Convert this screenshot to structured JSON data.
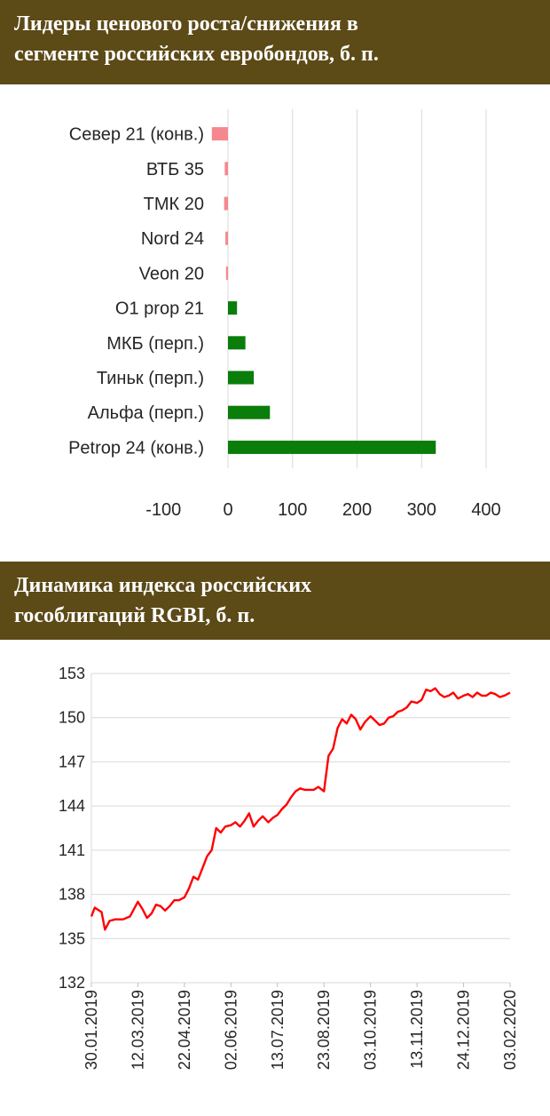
{
  "title1": {
    "line1": "Лидеры ценового роста/снижения в",
    "line2": "сегменте российских евробондов, б. п."
  },
  "title2": {
    "line1": "Динамика индекса российских",
    "line2": "гособлигаций RGBI, б. п."
  },
  "colors": {
    "header_bg": "#5c4a17",
    "negative": "#f4888e",
    "positive": "#0a7d0a",
    "line": "#ff0000",
    "grid": "#d9d9d9"
  },
  "chart_data": [
    {
      "type": "bar",
      "orientation": "horizontal",
      "categories": [
        "Север 21 (конв.)",
        "ВТБ 35",
        "ТМК 20",
        "Nord 24",
        "Veon 20",
        "O1 prop 21",
        "МКБ (перп.)",
        "Тиньк (перп.)",
        "Альфа (перп.)",
        "Petrop 24 (конв.)"
      ],
      "values": [
        -25,
        -5,
        -6,
        -4,
        -3,
        14,
        27,
        40,
        65,
        322
      ],
      "xlim": [
        -100,
        400
      ],
      "xticks": [
        -100,
        0,
        100,
        200,
        300,
        400
      ],
      "grid": true
    },
    {
      "type": "line",
      "ylim": [
        132,
        153
      ],
      "yticks": [
        132,
        135,
        138,
        141,
        144,
        147,
        150,
        153
      ],
      "xlim": [
        "30.01.2019",
        "03.02.2020"
      ],
      "xticks": [
        "30.01.2019",
        "12.03.2019",
        "22.04.2019",
        "02.06.2019",
        "13.07.2019",
        "23.08.2019",
        "03.10.2019",
        "13.11.2019",
        "24.12.2019",
        "03.02.2020"
      ],
      "grid": true,
      "x": [
        "30.01.2019",
        "02.02.2019",
        "08.02.2019",
        "11.02.2019",
        "15.02.2019",
        "20.02.2019",
        "27.02.2019",
        "05.03.2019",
        "12.03.2019",
        "16.03.2019",
        "20.03.2019",
        "24.03.2019",
        "28.03.2019",
        "01.04.2019",
        "05.04.2019",
        "09.04.2019",
        "13.04.2019",
        "17.04.2019",
        "22.04.2019",
        "26.04.2019",
        "30.04.2019",
        "04.05.2019",
        "08.05.2019",
        "12.05.2019",
        "16.05.2019",
        "20.05.2019",
        "24.05.2019",
        "28.05.2019",
        "02.06.2019",
        "06.06.2019",
        "10.06.2019",
        "14.06.2019",
        "18.06.2019",
        "22.06.2019",
        "26.06.2019",
        "30.06.2019",
        "05.07.2019",
        "09.07.2019",
        "13.07.2019",
        "17.07.2019",
        "21.07.2019",
        "25.07.2019",
        "29.07.2019",
        "02.08.2019",
        "06.08.2019",
        "10.08.2019",
        "14.08.2019",
        "18.08.2019",
        "23.08.2019",
        "27.08.2019",
        "31.08.2019",
        "04.09.2019",
        "08.09.2019",
        "12.09.2019",
        "16.09.2019",
        "20.09.2019",
        "24.09.2019",
        "28.09.2019",
        "03.10.2019",
        "07.10.2019",
        "11.10.2019",
        "15.10.2019",
        "19.10.2019",
        "23.10.2019",
        "27.10.2019",
        "31.10.2019",
        "04.11.2019",
        "08.11.2019",
        "13.11.2019",
        "17.11.2019",
        "21.11.2019",
        "25.11.2019",
        "29.11.2019",
        "03.12.2019",
        "07.12.2019",
        "11.12.2019",
        "15.12.2019",
        "19.12.2019",
        "24.12.2019",
        "28.12.2019",
        "01.01.2020",
        "05.01.2020",
        "09.01.2020",
        "13.01.2020",
        "17.01.2020",
        "21.01.2020",
        "25.01.2020",
        "29.01.2020",
        "03.02.2020"
      ],
      "values": [
        136.5,
        137.1,
        136.8,
        135.6,
        136.2,
        136.3,
        136.3,
        136.5,
        137.5,
        137.0,
        136.4,
        136.7,
        137.3,
        137.2,
        136.9,
        137.2,
        137.6,
        137.6,
        137.8,
        138.4,
        139.2,
        139.0,
        139.8,
        140.6,
        141.0,
        142.5,
        142.2,
        142.6,
        142.7,
        142.9,
        142.6,
        143.0,
        143.5,
        142.6,
        143.0,
        143.3,
        142.9,
        143.2,
        143.4,
        143.8,
        144.1,
        144.6,
        145.0,
        145.2,
        145.1,
        145.1,
        145.1,
        145.3,
        145.0,
        147.4,
        147.9,
        149.3,
        149.9,
        149.6,
        150.2,
        149.9,
        149.2,
        149.7,
        150.1,
        149.8,
        149.5,
        149.6,
        150.0,
        150.1,
        150.4,
        150.5,
        150.7,
        151.1,
        151.0,
        151.2,
        151.9,
        151.8,
        152.0,
        151.6,
        151.4,
        151.5,
        151.7,
        151.3,
        151.5,
        151.6,
        151.4,
        151.7,
        151.5,
        151.5,
        151.7,
        151.6,
        151.4,
        151.5,
        151.7
      ]
    }
  ]
}
